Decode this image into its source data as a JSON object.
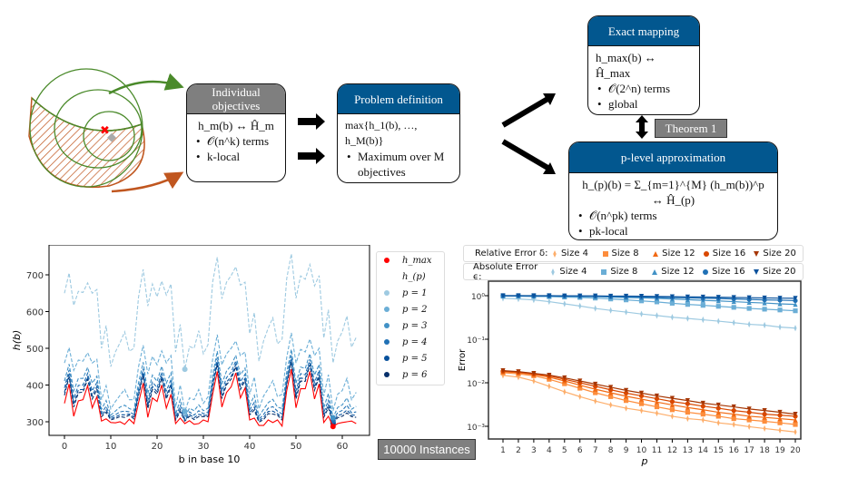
{
  "diagram": {
    "individual": {
      "title": "Individual objectives",
      "formula": "h_m(b) ↔ Ĥ_m",
      "bullets": [
        "𝒪(n^k) terms",
        "k-local"
      ]
    },
    "problem": {
      "title": "Problem definition",
      "formula": "max{h_1(b), …, h_M(b)}",
      "bullets": [
        "Maximum over M objectives"
      ]
    },
    "exact": {
      "title": "Exact mapping",
      "formula": "h_max(b) ↔ Ĥ_max",
      "bullets": [
        "𝒪(2^n) terms",
        "global"
      ]
    },
    "plevel": {
      "title": "p-level approximation",
      "formula": "h_(p)(b) = Σ_{m=1}^{M} (h_m(b))^p ↔ Ĥ_(p)",
      "bullets": [
        "𝒪(n^pk) terms",
        "pk-local"
      ]
    },
    "theorem": "Theorem 1",
    "instances": "10000 Instances",
    "colors": {
      "header_blue": "#02578f",
      "header_gray": "#7f7f7f",
      "green": "#4a8a2a",
      "orange": "#c0561f"
    }
  },
  "chart_data": [
    {
      "type": "line",
      "xlabel": "b in base 10",
      "ylabel": "h(b)",
      "xlim": [
        -4,
        66
      ],
      "ylim": [
        265,
        775
      ],
      "xticks": [
        0,
        10,
        20,
        30,
        40,
        50,
        60
      ],
      "yticks": [
        300,
        400,
        500,
        600,
        700
      ],
      "grid": false,
      "legend_position": "right-outside",
      "legend_title": "h_(p)",
      "series": [
        {
          "name": "h_max",
          "color": "#ff0000",
          "style": "solid",
          "values": [
            350,
            403,
            315,
            357,
            360,
            398,
            338,
            368,
            302,
            308,
            298,
            297,
            300,
            293,
            307,
            295,
            352,
            405,
            312,
            365,
            355,
            400,
            337,
            375,
            295,
            310,
            295,
            303,
            293,
            295,
            305,
            300,
            375,
            437,
            340,
            380,
            395,
            433,
            365,
            392,
            305,
            310,
            290,
            290,
            305,
            298,
            305,
            288,
            385,
            443,
            338,
            390,
            390,
            437,
            362,
            403,
            298,
            315,
            287,
            295,
            298,
            300,
            302,
            295
          ]
        },
        {
          "name": "p = 1",
          "color": "#9ecae1",
          "style": "dashed",
          "values": [
            650,
            705,
            617,
            655,
            652,
            678,
            650,
            660,
            500,
            562,
            450,
            490,
            515,
            545,
            492,
            500,
            640,
            715,
            615,
            675,
            640,
            683,
            645,
            675,
            490,
            565,
            443,
            505,
            500,
            548,
            485,
            510,
            680,
            748,
            635,
            680,
            698,
            722,
            672,
            680,
            540,
            597,
            465,
            520,
            555,
            583,
            512,
            525,
            690,
            757,
            636,
            697,
            688,
            728,
            670,
            698,
            528,
            605,
            460,
            520,
            545,
            588,
            503,
            530
          ]
        },
        {
          "name": "p = 2",
          "color": "#6baed6",
          "style": "dashed",
          "values": [
            460,
            502,
            440,
            468,
            465,
            488,
            460,
            470,
            360,
            398,
            335,
            355,
            372,
            388,
            360,
            360,
            450,
            508,
            430,
            478,
            455,
            493,
            460,
            480,
            340,
            400,
            328,
            365,
            360,
            388,
            350,
            368,
            470,
            537,
            455,
            485,
            500,
            520,
            480,
            490,
            375,
            422,
            335,
            370,
            390,
            412,
            368,
            375,
            475,
            542,
            460,
            497,
            490,
            525,
            480,
            500,
            370,
            428,
            330,
            375,
            385,
            418,
            360,
            380
          ]
        },
        {
          "name": "p = 3",
          "color": "#4292c6",
          "style": "dashed",
          "values": [
            411,
            457,
            384,
            418,
            418,
            448,
            405,
            424,
            334,
            358,
            318,
            329,
            340,
            345,
            336,
            331,
            406,
            462,
            377,
            427,
            410,
            451,
            405,
            433,
            320,
            360,
            313,
            337,
            330,
            346,
            330,
            337,
            427,
            492,
            403,
            438,
            453,
            481,
            428,
            446,
            344,
            372,
            315,
            334,
            352,
            361,
            340,
            336,
            435,
            497,
            405,
            449,
            445,
            485,
            427,
            456,
            338,
            377,
            311,
            339,
            346,
            365,
            334,
            342
          ]
        },
        {
          "name": "p = 4",
          "color": "#2171b5",
          "style": "dashed",
          "values": [
            392,
            441,
            363,
            399,
            400,
            432,
            384,
            407,
            324,
            342,
            312,
            319,
            327,
            329,
            327,
            320,
            389,
            444,
            357,
            408,
            393,
            435,
            384,
            415,
            312,
            344,
            308,
            327,
            318,
            330,
            322,
            326,
            411,
            475,
            384,
            420,
            435,
            466,
            409,
            429,
            332,
            353,
            307,
            320,
            337,
            341,
            329,
            321,
            419,
            481,
            384,
            431,
            428,
            470,
            407,
            440,
            325,
            358,
            303,
            325,
            331,
            345,
            324,
            327
          ]
        },
        {
          "name": "p = 5",
          "color": "#08519c",
          "style": "dashed",
          "values": [
            380,
            430,
            349,
            387,
            388,
            422,
            371,
            396,
            318,
            332,
            308,
            313,
            319,
            319,
            321,
            313,
            378,
            433,
            344,
            396,
            382,
            425,
            370,
            403,
            307,
            334,
            304,
            320,
            311,
            320,
            317,
            318,
            401,
            464,
            371,
            408,
            423,
            456,
            396,
            418,
            324,
            340,
            302,
            312,
            328,
            329,
            322,
            311,
            409,
            470,
            371,
            419,
            417,
            461,
            394,
            429,
            317,
            346,
            299,
            317,
            321,
            332,
            318,
            318
          ]
        },
        {
          "name": "p = 6",
          "color": "#08306b",
          "style": "dashed",
          "values": [
            372,
            423,
            340,
            379,
            381,
            416,
            362,
            388,
            314,
            326,
            305,
            309,
            314,
            312,
            318,
            308,
            372,
            426,
            336,
            388,
            375,
            419,
            362,
            396,
            304,
            328,
            302,
            315,
            306,
            314,
            314,
            314,
            394,
            457,
            363,
            401,
            416,
            450,
            388,
            412,
            319,
            332,
            299,
            306,
            322,
            321,
            318,
            305,
            403,
            463,
            362,
            411,
            410,
            455,
            386,
            422,
            312,
            338,
            296,
            311,
            315,
            324,
            314,
            312
          ]
        }
      ]
    },
    {
      "type": "line",
      "xlabel": "p",
      "ylabel": "Error",
      "yscale": "log",
      "ylim": [
        0.0005,
        2
      ],
      "xlim": [
        0.5,
        20.5
      ],
      "xticks": [
        1,
        2,
        3,
        4,
        5,
        6,
        7,
        8,
        9,
        10,
        11,
        12,
        13,
        14,
        15,
        16,
        17,
        18,
        19,
        20
      ],
      "yticks": [
        "10^0",
        "10^-1",
        "10^-2",
        "10^-3"
      ],
      "grid": false,
      "legend_position": "top-outside",
      "legend_rows": [
        {
          "label": "Relative Error δ:"
        },
        {
          "label": "Absolute Error ϵ:"
        }
      ],
      "x": [
        1,
        2,
        3,
        4,
        5,
        6,
        7,
        8,
        9,
        10,
        11,
        12,
        13,
        14,
        15,
        16,
        17,
        18,
        19,
        20
      ],
      "series": [
        {
          "name": "Size 4",
          "group": "relative",
          "marker": "diamond",
          "color": "#fdae6b",
          "values": [
            0.0148,
            0.0135,
            0.011,
            0.0083,
            0.0062,
            0.0048,
            0.0038,
            0.0031,
            0.0026,
            0.0023,
            0.002,
            0.0017,
            0.0015,
            0.0014,
            0.0012,
            0.0011,
            0.00098,
            0.00089,
            0.00081,
            0.00074
          ]
        },
        {
          "name": "Size 8",
          "group": "relative",
          "marker": "square",
          "color": "#fd8d3c",
          "values": [
            0.017,
            0.016,
            0.0145,
            0.012,
            0.0095,
            0.0075,
            0.0059,
            0.0048,
            0.0039,
            0.0033,
            0.0028,
            0.0024,
            0.0021,
            0.0019,
            0.0017,
            0.0015,
            0.0014,
            0.0013,
            0.0012,
            0.0011
          ]
        },
        {
          "name": "Size 12",
          "group": "relative",
          "marker": "triangle-up",
          "color": "#f16913",
          "values": [
            0.018,
            0.017,
            0.0155,
            0.0135,
            0.011,
            0.0088,
            0.0071,
            0.0059,
            0.0049,
            0.0042,
            0.0036,
            0.0031,
            0.0027,
            0.0024,
            0.0021,
            0.0019,
            0.0017,
            0.0016,
            0.0015,
            0.0014
          ]
        },
        {
          "name": "Size 16",
          "group": "relative",
          "marker": "circle",
          "color": "#d94801",
          "values": [
            0.0185,
            0.0175,
            0.016,
            0.0145,
            0.012,
            0.01,
            0.0083,
            0.0069,
            0.0058,
            0.005,
            0.0043,
            0.0037,
            0.0033,
            0.0029,
            0.0026,
            0.0023,
            0.0021,
            0.0019,
            0.0018,
            0.0017
          ]
        },
        {
          "name": "Size 20",
          "group": "relative",
          "marker": "triangle-down",
          "color": "#a63603",
          "values": [
            0.019,
            0.018,
            0.0165,
            0.015,
            0.013,
            0.011,
            0.0093,
            0.0079,
            0.0067,
            0.0058,
            0.005,
            0.0044,
            0.0039,
            0.0034,
            0.0031,
            0.0028,
            0.0025,
            0.0023,
            0.0021,
            0.0019
          ]
        },
        {
          "name": "Size 4",
          "group": "absolute",
          "marker": "diamond",
          "color": "#9ecae1",
          "values": [
            0.87,
            0.84,
            0.8,
            0.73,
            0.65,
            0.58,
            0.51,
            0.46,
            0.42,
            0.38,
            0.35,
            0.32,
            0.3,
            0.28,
            0.26,
            0.24,
            0.22,
            0.21,
            0.19,
            0.18
          ]
        },
        {
          "name": "Size 8",
          "group": "absolute",
          "marker": "square",
          "color": "#6baed6",
          "values": [
            0.98,
            0.97,
            0.96,
            0.95,
            0.93,
            0.91,
            0.88,
            0.84,
            0.8,
            0.76,
            0.72,
            0.67,
            0.63,
            0.6,
            0.57,
            0.54,
            0.51,
            0.49,
            0.47,
            0.45
          ]
        },
        {
          "name": "Size 12",
          "group": "absolute",
          "marker": "triangle-up",
          "color": "#4292c6",
          "values": [
            0.99,
            0.99,
            0.98,
            0.98,
            0.97,
            0.96,
            0.95,
            0.93,
            0.91,
            0.89,
            0.87,
            0.84,
            0.81,
            0.78,
            0.76,
            0.73,
            0.7,
            0.68,
            0.65,
            0.63
          ]
        },
        {
          "name": "Size 16",
          "group": "absolute",
          "marker": "circle",
          "color": "#2171b5",
          "values": [
            1.0,
            1.0,
            0.99,
            0.99,
            0.99,
            0.98,
            0.97,
            0.96,
            0.95,
            0.94,
            0.92,
            0.91,
            0.89,
            0.87,
            0.86,
            0.84,
            0.82,
            0.8,
            0.79,
            0.77
          ]
        },
        {
          "name": "Size 20",
          "group": "absolute",
          "marker": "triangle-down",
          "color": "#08519c",
          "values": [
            1.0,
            1.0,
            1.0,
            1.0,
            0.99,
            0.99,
            0.99,
            0.98,
            0.98,
            0.97,
            0.96,
            0.95,
            0.94,
            0.93,
            0.92,
            0.91,
            0.9,
            0.89,
            0.88,
            0.87
          ]
        }
      ]
    }
  ]
}
